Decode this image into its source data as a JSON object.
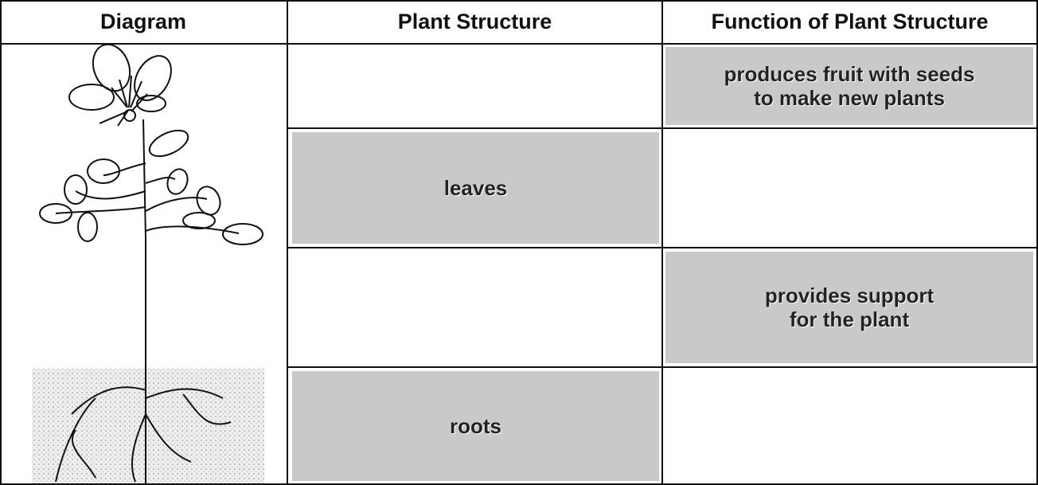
{
  "table": {
    "headers": [
      "Diagram",
      "Plant Structure",
      "Function of Plant Structure"
    ],
    "rows": [
      {
        "function": [
          "produces fruit with seeds",
          "to make new plants"
        ]
      },
      {
        "structure": "leaves"
      },
      {
        "function": [
          "provides support",
          "for the plant"
        ]
      },
      {
        "structure": "roots"
      }
    ]
  }
}
